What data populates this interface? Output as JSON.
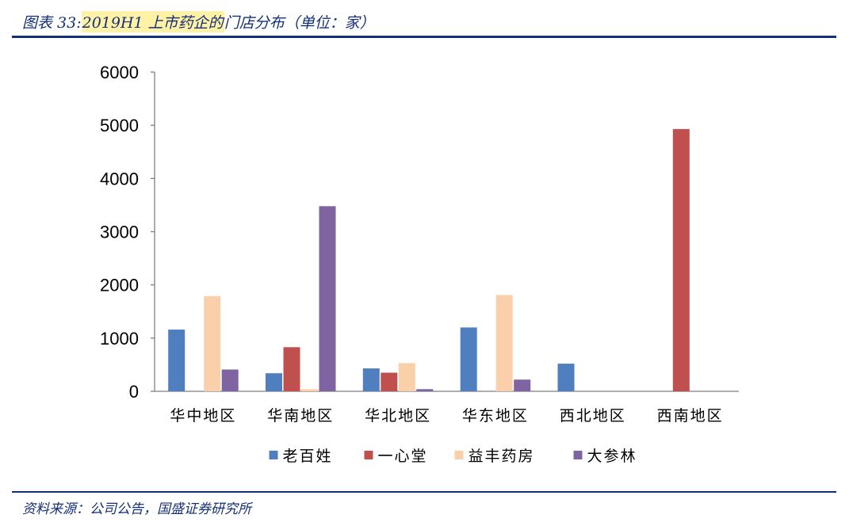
{
  "figure": {
    "title_prefix": "图表 33:",
    "title_highlight": "2019H1 上市药企的",
    "title_rest": "门店分布（单位：家）",
    "source": "资料来源：公司公告，国盛证券研究所"
  },
  "chart_data": {
    "type": "bar",
    "title": "",
    "xlabel": "",
    "ylabel": "",
    "ylim": [
      0,
      6000
    ],
    "yticks": [
      0,
      1000,
      2000,
      3000,
      4000,
      5000,
      6000
    ],
    "grid": false,
    "legend_position": "bottom",
    "categories": [
      "华中地区",
      "华南地区",
      "华北地区",
      "华东地区",
      "西北地区",
      "西南地区"
    ],
    "series": [
      {
        "name": "老百姓",
        "color": "#4f7fbe",
        "values": [
          1160,
          340,
          430,
          1200,
          520,
          0
        ]
      },
      {
        "name": "一心堂",
        "color": "#c0504d",
        "values": [
          0,
          830,
          350,
          0,
          0,
          4930
        ]
      },
      {
        "name": "益丰药房",
        "color": "#fad0aa",
        "values": [
          1790,
          40,
          530,
          1810,
          0,
          0
        ]
      },
      {
        "name": "大参林",
        "color": "#8064a2",
        "values": [
          410,
          3480,
          40,
          220,
          0,
          0
        ]
      }
    ]
  }
}
